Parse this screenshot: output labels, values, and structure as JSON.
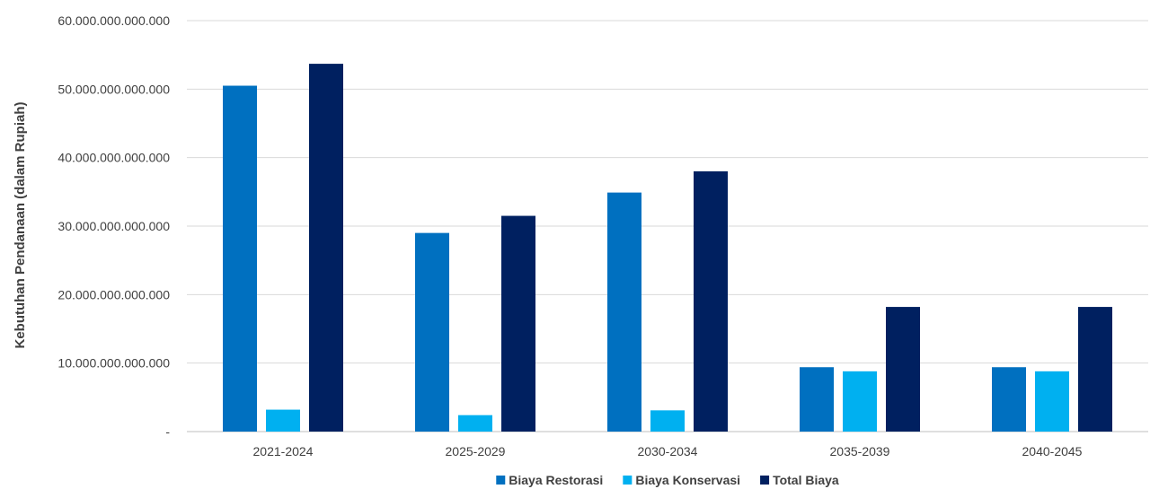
{
  "chart_data": {
    "type": "bar",
    "categories": [
      "2021-2024",
      "2025-2029",
      "2030-2034",
      "2035-2039",
      "2040-2045"
    ],
    "series": [
      {
        "name": "Biaya Restorasi",
        "color": "#0070C0",
        "values": [
          50500000000000,
          29000000000000,
          34900000000000,
          9400000000000,
          9400000000000
        ]
      },
      {
        "name": "Biaya Konservasi",
        "color": "#00B0F0",
        "values": [
          3200000000000,
          2400000000000,
          3100000000000,
          8800000000000,
          8800000000000
        ]
      },
      {
        "name": "Total Biaya",
        "color": "#002060",
        "values": [
          53700000000000,
          31500000000000,
          38000000000000,
          18200000000000,
          18200000000000
        ]
      }
    ],
    "ylabel": "Kebutuhan Pendanaan (dalam Rupiah)",
    "ylim": [
      0,
      60000000000000
    ],
    "yticks": [
      0,
      10000000000000,
      20000000000000,
      30000000000000,
      40000000000000,
      50000000000000,
      60000000000000
    ],
    "ytick_labels": [
      "-",
      "10.000.000.000.000",
      "20.000.000.000.000",
      "30.000.000.000.000",
      "40.000.000.000.000",
      "50.000.000.000.000",
      "60.000.000.000.000"
    ],
    "grid": true,
    "legend_position": "bottom"
  }
}
